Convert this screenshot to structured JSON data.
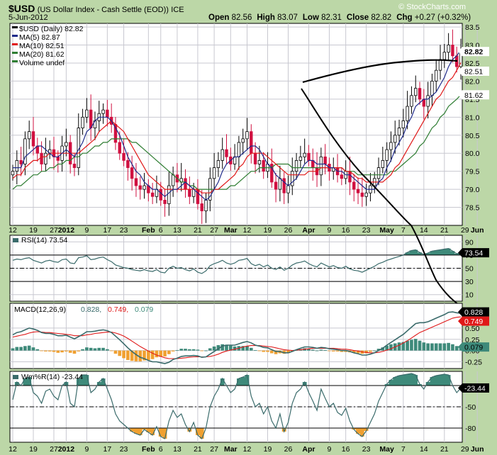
{
  "header": {
    "symbol": "$USD",
    "name": "(US Dollar Index - Cash Settle (EOD))",
    "exchange": "ICE",
    "date": "5-Jun-2012",
    "brand": "© StockCharts.com",
    "ohlc": [
      {
        "label": "Open",
        "value": "82.56"
      },
      {
        "label": "High",
        "value": "83.07"
      },
      {
        "label": "Low",
        "value": "82.31"
      },
      {
        "label": "Close",
        "value": "82.82"
      },
      {
        "label": "Chg",
        "value": "+0.27 (+0.32%)"
      }
    ]
  },
  "colors": {
    "background": "#bcd7a7",
    "panel": "#ffffff",
    "up_candle": "#ffffff",
    "down_candle": "#d01040",
    "ma5": "#1f2a8a",
    "ma10": "#e01818",
    "ma20": "#2e7d32",
    "indicator_line": "#3a6b6b",
    "fill_green": "#3e8a7a",
    "fill_orange": "#f0a030",
    "tag": "#000000"
  },
  "chart_data": [
    {
      "type": "candlestick",
      "panel": "price",
      "title": "$USD (Daily) 82.82",
      "legend": [
        {
          "text": "$USD (Daily) 82.82",
          "color": "#000000"
        },
        {
          "text": "MA(5) 82.87",
          "color": "#1f2a8a"
        },
        {
          "text": "MA(10) 82.51",
          "color": "#e01818"
        },
        {
          "text": "MA(20) 81.62",
          "color": "#2e7d32"
        },
        {
          "text": "Volume undef",
          "color": "#2e7d32"
        }
      ],
      "ylim": [
        78.0,
        83.6
      ],
      "y_ticks": [
        "78.5",
        "79.0",
        "79.5",
        "80.0",
        "80.5",
        "81.0",
        "81.5",
        "82.0",
        "82.5",
        "83.0",
        "83.5"
      ],
      "value_tags": [
        {
          "text": "82.82",
          "value": 82.82,
          "style": "bold"
        },
        {
          "text": "82.51",
          "value": 82.51,
          "style": "normal"
        },
        {
          "text": "81.62",
          "value": 81.62,
          "style": "normal"
        }
      ],
      "close": [
        79.5,
        79.8,
        79.7,
        80.4,
        80.6,
        80.2,
        80.0,
        79.7,
        80.0,
        80.1,
        79.9,
        79.8,
        80.2,
        80.3,
        79.7,
        79.6,
        80.7,
        81.0,
        81.2,
        80.7,
        80.9,
        81.1,
        81.2,
        81.0,
        80.8,
        80.3,
        80.0,
        79.8,
        79.6,
        79.3,
        79.1,
        79.0,
        79.1,
        78.9,
        78.8,
        79.0,
        78.7,
        78.6,
        79.1,
        79.4,
        79.2,
        79.3,
        79.0,
        78.8,
        79.0,
        78.6,
        78.4,
        78.7,
        79.3,
        79.6,
        79.8,
        80.1,
        79.9,
        79.7,
        79.9,
        80.3,
        80.4,
        80.6,
        80.0,
        79.7,
        79.8,
        79.5,
        79.7,
        79.2,
        79.0,
        79.3,
        78.9,
        79.1,
        79.5,
        79.8,
        79.9,
        80.0,
        79.8,
        79.6,
        79.4,
        79.9,
        79.7,
        79.5,
        79.6,
        79.4,
        79.3,
        79.5,
        79.2,
        79.0,
        78.9,
        78.8,
        78.9,
        79.1,
        79.3,
        79.6,
        79.8,
        80.1,
        80.3,
        80.5,
        80.7,
        80.9,
        81.3,
        81.6,
        81.8,
        81.5,
        81.3,
        81.6,
        82.0,
        82.3,
        82.6,
        82.8,
        83.0,
        82.7,
        82.4,
        82.82
      ],
      "ma5": [
        79.6,
        79.6,
        79.6,
        79.9,
        80.0,
        80.1,
        80.2,
        80.2,
        80.1,
        80.0,
        79.9,
        79.9,
        80.0,
        80.1,
        80.0,
        79.9,
        80.1,
        80.3,
        80.6,
        80.7,
        80.9,
        81.0,
        81.0,
        81.0,
        80.9,
        80.7,
        80.5,
        80.2,
        79.9,
        79.7,
        79.5,
        79.4,
        79.2,
        79.1,
        79.0,
        79.0,
        78.9,
        78.8,
        78.9,
        79.0,
        79.0,
        79.1,
        79.2,
        79.1,
        79.0,
        78.9,
        78.8,
        78.7,
        78.8,
        79.0,
        79.2,
        79.5,
        79.7,
        79.8,
        79.9,
        79.9,
        80.0,
        80.1,
        80.2,
        80.2,
        80.1,
        79.9,
        79.7,
        79.6,
        79.4,
        79.3,
        79.2,
        79.1,
        79.2,
        79.3,
        79.5,
        79.7,
        79.8,
        79.8,
        79.7,
        79.7,
        79.7,
        79.6,
        79.6,
        79.5,
        79.5,
        79.4,
        79.4,
        79.3,
        79.2,
        79.1,
        79.0,
        79.0,
        79.0,
        79.2,
        79.3,
        79.6,
        79.8,
        80.1,
        80.3,
        80.5,
        80.8,
        81.0,
        81.3,
        81.4,
        81.5,
        81.5,
        81.6,
        81.7,
        81.9,
        82.1,
        82.4,
        82.6,
        82.7,
        82.87
      ],
      "ma10": [
        79.3,
        79.4,
        79.4,
        79.6,
        79.7,
        79.8,
        79.8,
        79.9,
        79.9,
        80.0,
        80.0,
        80.0,
        80.0,
        80.0,
        80.0,
        80.0,
        80.0,
        80.1,
        80.2,
        80.3,
        80.4,
        80.6,
        80.7,
        80.8,
        80.9,
        80.8,
        80.7,
        80.6,
        80.4,
        80.2,
        80.0,
        79.8,
        79.6,
        79.4,
        79.3,
        79.2,
        79.1,
        79.0,
        79.0,
        79.0,
        79.0,
        79.0,
        79.0,
        79.0,
        79.0,
        79.0,
        78.9,
        78.9,
        78.9,
        79.0,
        79.0,
        79.1,
        79.2,
        79.3,
        79.4,
        79.6,
        79.7,
        79.9,
        80.0,
        80.0,
        80.0,
        80.0,
        79.9,
        79.8,
        79.7,
        79.6,
        79.5,
        79.4,
        79.4,
        79.4,
        79.4,
        79.4,
        79.5,
        79.5,
        79.5,
        79.6,
        79.6,
        79.6,
        79.6,
        79.6,
        79.6,
        79.5,
        79.5,
        79.4,
        79.3,
        79.3,
        79.2,
        79.2,
        79.2,
        79.2,
        79.2,
        79.3,
        79.4,
        79.6,
        79.7,
        79.9,
        80.1,
        80.3,
        80.5,
        80.7,
        80.9,
        81.1,
        81.3,
        81.5,
        81.6,
        81.8,
        82.0,
        82.1,
        82.3,
        82.51
      ],
      "ma20": [
        79.0,
        79.1,
        79.1,
        79.2,
        79.3,
        79.4,
        79.4,
        79.5,
        79.5,
        79.6,
        79.6,
        79.7,
        79.7,
        79.8,
        79.8,
        79.9,
        79.9,
        80.0,
        80.0,
        80.1,
        80.2,
        80.2,
        80.3,
        80.3,
        80.4,
        80.4,
        80.4,
        80.4,
        80.4,
        80.3,
        80.3,
        80.2,
        80.1,
        80.0,
        79.9,
        79.8,
        79.7,
        79.6,
        79.5,
        79.4,
        79.3,
        79.2,
        79.2,
        79.1,
        79.1,
        79.0,
        79.0,
        79.0,
        79.0,
        79.0,
        79.0,
        79.0,
        79.0,
        79.1,
        79.1,
        79.2,
        79.3,
        79.4,
        79.5,
        79.5,
        79.6,
        79.6,
        79.6,
        79.6,
        79.7,
        79.7,
        79.7,
        79.7,
        79.6,
        79.6,
        79.6,
        79.6,
        79.6,
        79.6,
        79.6,
        79.6,
        79.6,
        79.6,
        79.6,
        79.6,
        79.6,
        79.5,
        79.5,
        79.5,
        79.4,
        79.4,
        79.4,
        79.4,
        79.4,
        79.4,
        79.4,
        79.4,
        79.5,
        79.5,
        79.6,
        79.7,
        79.8,
        79.9,
        80.0,
        80.2,
        80.3,
        80.5,
        80.7,
        80.8,
        81.0,
        81.1,
        81.3,
        81.4,
        81.5,
        81.62
      ]
    },
    {
      "type": "line",
      "panel": "rsi",
      "title": "RSI(14) 73.54",
      "ylim": [
        0,
        100
      ],
      "y_ticks": [
        "10",
        "30",
        "50",
        "70",
        "90"
      ],
      "levels": [
        30,
        50,
        70
      ],
      "value_tags": [
        {
          "text": "73.54",
          "value": 73.54
        }
      ],
      "values": [
        62,
        64,
        63,
        65,
        66,
        62,
        60,
        58,
        61,
        62,
        60,
        59,
        63,
        64,
        58,
        57,
        66,
        67,
        69,
        63,
        64,
        66,
        67,
        63,
        60,
        55,
        53,
        51,
        50,
        48,
        47,
        46,
        48,
        46,
        45,
        48,
        44,
        43,
        50,
        53,
        50,
        51,
        48,
        46,
        49,
        44,
        42,
        46,
        54,
        57,
        59,
        62,
        58,
        56,
        58,
        62,
        63,
        65,
        57,
        54,
        56,
        52,
        55,
        50,
        48,
        52,
        47,
        50,
        55,
        58,
        59,
        61,
        57,
        54,
        52,
        58,
        55,
        52,
        54,
        51,
        50,
        53,
        49,
        47,
        46,
        44,
        47,
        50,
        53,
        57,
        59,
        62,
        64,
        66,
        68,
        70,
        74,
        77,
        78,
        74,
        71,
        73,
        76,
        77,
        78,
        79,
        80,
        76,
        72,
        73.54
      ]
    },
    {
      "type": "line",
      "panel": "macd",
      "title": "MACD(12,26,9) 0.828, 0.749, 0.079",
      "legend": [
        {
          "text": "MACD(12,26,9)",
          "color": "#000000"
        },
        {
          "text": "0.828",
          "color": "#3a6b6b"
        },
        {
          "text": "0.749",
          "color": "#e01818"
        },
        {
          "text": "0.079",
          "color": "#3e8a7a"
        }
      ],
      "ylim": [
        -0.4,
        1.05
      ],
      "y_ticks": [
        "-0.25",
        "0.00",
        "0.25",
        "0.50"
      ],
      "value_tags": [
        {
          "text": "0.828",
          "value": 0.828
        },
        {
          "text": "0.749",
          "value": 0.749
        },
        {
          "text": "0.079",
          "value": 0.079
        }
      ],
      "macd": [
        0.35,
        0.4,
        0.42,
        0.46,
        0.5,
        0.48,
        0.45,
        0.4,
        0.38,
        0.38,
        0.36,
        0.33,
        0.33,
        0.34,
        0.3,
        0.26,
        0.31,
        0.36,
        0.42,
        0.42,
        0.43,
        0.45,
        0.46,
        0.44,
        0.4,
        0.32,
        0.24,
        0.15,
        0.06,
        -0.02,
        -0.09,
        -0.15,
        -0.18,
        -0.22,
        -0.25,
        -0.25,
        -0.27,
        -0.29,
        -0.26,
        -0.2,
        -0.17,
        -0.13,
        -0.12,
        -0.12,
        -0.11,
        -0.12,
        -0.15,
        -0.14,
        -0.08,
        -0.02,
        0.04,
        0.1,
        0.12,
        0.12,
        0.12,
        0.15,
        0.18,
        0.2,
        0.17,
        0.12,
        0.1,
        0.07,
        0.06,
        0.02,
        -0.02,
        -0.02,
        -0.05,
        -0.05,
        -0.02,
        0.02,
        0.05,
        0.08,
        0.08,
        0.07,
        0.05,
        0.07,
        0.06,
        0.04,
        0.03,
        0.02,
        0.0,
        0.0,
        -0.02,
        -0.05,
        -0.07,
        -0.1,
        -0.1,
        -0.08,
        -0.05,
        0.0,
        0.05,
        0.12,
        0.18,
        0.24,
        0.3,
        0.36,
        0.44,
        0.52,
        0.6,
        0.62,
        0.62,
        0.64,
        0.68,
        0.72,
        0.76,
        0.8,
        0.85,
        0.86,
        0.84,
        0.828
      ],
      "signal": [
        0.3,
        0.32,
        0.34,
        0.36,
        0.39,
        0.41,
        0.42,
        0.41,
        0.4,
        0.4,
        0.39,
        0.38,
        0.37,
        0.36,
        0.35,
        0.33,
        0.33,
        0.33,
        0.35,
        0.36,
        0.38,
        0.39,
        0.4,
        0.41,
        0.41,
        0.39,
        0.36,
        0.32,
        0.27,
        0.21,
        0.15,
        0.09,
        0.04,
        -0.01,
        -0.06,
        -0.1,
        -0.13,
        -0.16,
        -0.18,
        -0.18,
        -0.18,
        -0.17,
        -0.16,
        -0.15,
        -0.14,
        -0.14,
        -0.14,
        -0.14,
        -0.13,
        -0.11,
        -0.08,
        -0.04,
        -0.01,
        0.01,
        0.03,
        0.05,
        0.08,
        0.1,
        0.11,
        0.11,
        0.11,
        0.1,
        0.09,
        0.08,
        0.06,
        0.04,
        0.02,
        0.01,
        0.0,
        0.01,
        0.02,
        0.03,
        0.04,
        0.05,
        0.05,
        0.05,
        0.05,
        0.05,
        0.05,
        0.04,
        0.03,
        0.03,
        0.02,
        0.0,
        -0.01,
        -0.03,
        -0.04,
        -0.05,
        -0.05,
        -0.04,
        -0.02,
        0.01,
        0.04,
        0.08,
        0.12,
        0.17,
        0.22,
        0.28,
        0.34,
        0.4,
        0.44,
        0.48,
        0.52,
        0.56,
        0.6,
        0.64,
        0.68,
        0.72,
        0.74,
        0.749
      ],
      "histogram": [
        0.05,
        0.08,
        0.08,
        0.1,
        0.11,
        0.07,
        0.03,
        -0.01,
        -0.02,
        -0.02,
        -0.03,
        -0.05,
        -0.04,
        -0.02,
        -0.05,
        -0.07,
        -0.02,
        0.03,
        0.07,
        0.06,
        0.05,
        0.06,
        0.06,
        0.03,
        -0.01,
        -0.07,
        -0.12,
        -0.17,
        -0.21,
        -0.23,
        -0.24,
        -0.24,
        -0.22,
        -0.21,
        -0.19,
        -0.15,
        -0.14,
        -0.13,
        -0.08,
        -0.02,
        0.01,
        0.04,
        0.04,
        0.03,
        0.03,
        0.02,
        -0.01,
        0.0,
        0.05,
        0.09,
        0.12,
        0.14,
        0.13,
        0.11,
        0.09,
        0.1,
        0.1,
        0.1,
        0.06,
        0.01,
        -0.01,
        -0.03,
        -0.03,
        -0.06,
        -0.08,
        -0.06,
        -0.07,
        -0.06,
        -0.02,
        0.01,
        0.03,
        0.05,
        0.04,
        0.02,
        0.0,
        0.02,
        0.01,
        -0.01,
        -0.02,
        -0.02,
        -0.03,
        -0.03,
        -0.04,
        -0.05,
        -0.06,
        -0.07,
        -0.06,
        -0.03,
        0.0,
        0.04,
        0.07,
        0.11,
        0.14,
        0.16,
        0.18,
        0.19,
        0.22,
        0.24,
        0.26,
        0.22,
        0.18,
        0.16,
        0.16,
        0.16,
        0.16,
        0.16,
        0.17,
        0.14,
        0.1,
        0.079
      ]
    },
    {
      "type": "line",
      "panel": "williams",
      "title": "Wm%R(14) -23.44",
      "ylim": [
        -100,
        0
      ],
      "y_ticks": [
        "-80",
        "-50",
        "-20"
      ],
      "levels": [
        -80,
        -50,
        -20
      ],
      "value_tags": [
        {
          "text": "-23.44",
          "value": -23.44
        }
      ],
      "values": [
        -40,
        -15,
        -20,
        -10,
        -8,
        -30,
        -35,
        -45,
        -28,
        -25,
        -35,
        -40,
        -20,
        -15,
        -45,
        -50,
        -10,
        -5,
        -5,
        -30,
        -25,
        -15,
        -10,
        -25,
        -40,
        -60,
        -70,
        -75,
        -80,
        -85,
        -88,
        -90,
        -82,
        -86,
        -90,
        -78,
        -92,
        -95,
        -70,
        -55,
        -65,
        -60,
        -75,
        -85,
        -72,
        -90,
        -95,
        -80,
        -50,
        -35,
        -25,
        -10,
        -20,
        -30,
        -25,
        -10,
        -8,
        -5,
        -35,
        -50,
        -45,
        -60,
        -50,
        -70,
        -80,
        -60,
        -85,
        -72,
        -45,
        -30,
        -25,
        -15,
        -30,
        -42,
        -55,
        -25,
        -38,
        -50,
        -45,
        -58,
        -62,
        -52,
        -70,
        -82,
        -88,
        -92,
        -84,
        -72,
        -60,
        -42,
        -30,
        -18,
        -12,
        -8,
        -6,
        -5,
        -4,
        -3,
        -5,
        -18,
        -25,
        -15,
        -8,
        -6,
        -5,
        -4,
        -5,
        -20,
        -30,
        -23.44
      ]
    }
  ],
  "x_axis": {
    "labels": [
      {
        "text": "12",
        "i": 0,
        "bold": false
      },
      {
        "text": "19",
        "i": 5,
        "bold": false
      },
      {
        "text": "27",
        "i": 10,
        "bold": false
      },
      {
        "text": "2012",
        "i": 13,
        "bold": true
      },
      {
        "text": "9",
        "i": 18,
        "bold": false
      },
      {
        "text": "17",
        "i": 23,
        "bold": false
      },
      {
        "text": "23",
        "i": 27,
        "bold": false
      },
      {
        "text": "Feb",
        "i": 33,
        "bold": true
      },
      {
        "text": "6",
        "i": 36,
        "bold": false
      },
      {
        "text": "13",
        "i": 40,
        "bold": false
      },
      {
        "text": "21",
        "i": 45,
        "bold": false
      },
      {
        "text": "27",
        "i": 49,
        "bold": false
      },
      {
        "text": "Mar",
        "i": 53,
        "bold": true
      },
      {
        "text": "12",
        "i": 57,
        "bold": false
      },
      {
        "text": "19",
        "i": 62,
        "bold": false
      },
      {
        "text": "26",
        "i": 67,
        "bold": false
      },
      {
        "text": "Apr",
        "i": 72,
        "bold": true
      },
      {
        "text": "9",
        "i": 77,
        "bold": false
      },
      {
        "text": "16",
        "i": 81,
        "bold": false
      },
      {
        "text": "23",
        "i": 86,
        "bold": false
      },
      {
        "text": "May",
        "i": 91,
        "bold": true
      },
      {
        "text": "7",
        "i": 95,
        "bold": false
      },
      {
        "text": "14",
        "i": 100,
        "bold": false
      },
      {
        "text": "21",
        "i": 105,
        "bold": false
      },
      {
        "text": "29",
        "i": 110,
        "bold": false
      },
      {
        "text": "Jun",
        "i": 113,
        "bold": true
      }
    ]
  }
}
